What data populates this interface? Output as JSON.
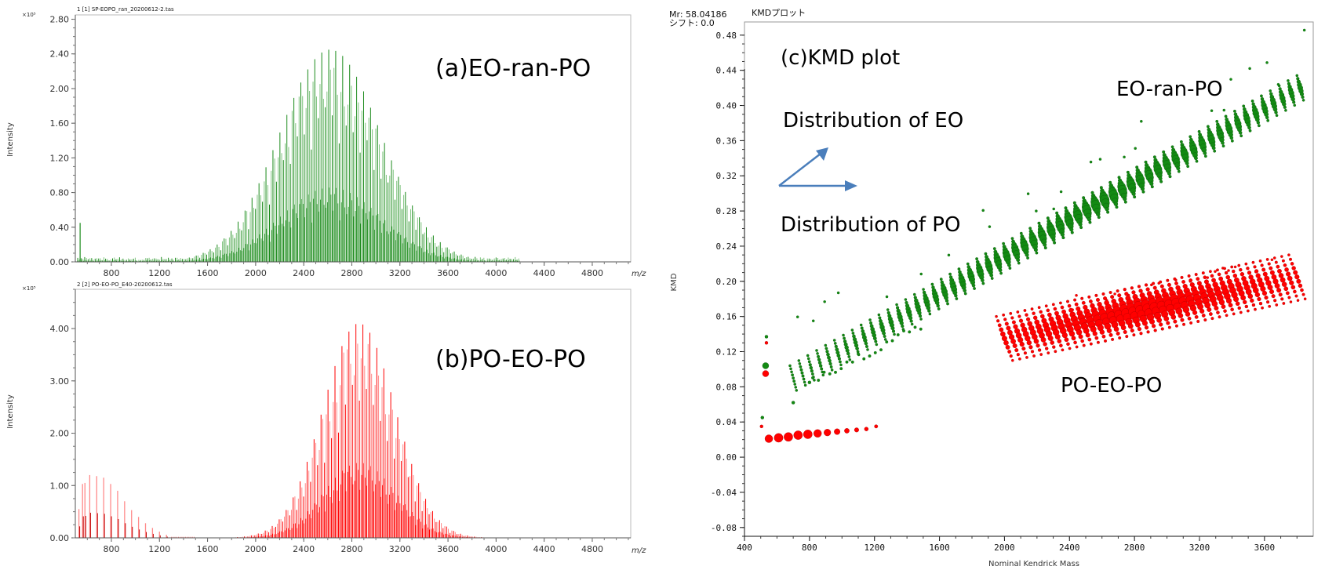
{
  "chart_data": [
    {
      "id": "a",
      "type": "bar",
      "file_label": "1 [1] SP-EOPO_ran_20200612-2.tas",
      "annotation": "(a)EO-ran-PO",
      "scale_label": "×10⁵",
      "ylabel": "Intensity",
      "xlabel": "m/z",
      "xlim": [
        500,
        5120
      ],
      "ylim": [
        0,
        2.85
      ],
      "yticks": [
        "0.00",
        "0.40",
        "0.80",
        "1.20",
        "1.60",
        "2.00",
        "2.40",
        "2.80"
      ],
      "xticks": [
        "800",
        "1200",
        "1600",
        "2000",
        "2400",
        "2800",
        "3200",
        "3600",
        "4000",
        "4400",
        "4800"
      ],
      "color": "#1a8a1a",
      "color_light": "#7fc47f",
      "envelope": {
        "center": 2620,
        "sigma": 420,
        "peak": 2.45,
        "spacing": 14.5,
        "start": 520,
        "end": 4200
      },
      "low_mass_peak": {
        "x": 540,
        "y": 0.45
      },
      "baseline": 0.04
    },
    {
      "id": "b",
      "type": "bar",
      "file_label": "2 [2] PO-EO-PO_E40-20200612.tas",
      "annotation": "(b)PO-EO-PO",
      "scale_label": "×10⁵",
      "ylabel": "Intensity",
      "xlabel": "m/z",
      "xlim": [
        500,
        5120
      ],
      "ylim": [
        0,
        4.75
      ],
      "yticks": [
        "0.00",
        "1.00",
        "2.00",
        "3.00",
        "4.00"
      ],
      "xticks": [
        "800",
        "1200",
        "1600",
        "2000",
        "2400",
        "2800",
        "3200",
        "3600",
        "4000",
        "4400",
        "4800"
      ],
      "color": "#ff0000",
      "color_light": "#ff8a8a",
      "envelope": {
        "center": 2860,
        "sigma": 300,
        "peak": 4.1,
        "spacing": 14.5,
        "start": 1500,
        "end": 4200
      },
      "low_mass_series": [
        {
          "x": 530,
          "y": 0.55
        },
        {
          "x": 560,
          "y": 1.03
        },
        {
          "x": 580,
          "y": 1.05
        },
        {
          "x": 620,
          "y": 1.2
        },
        {
          "x": 678,
          "y": 1.18
        },
        {
          "x": 736,
          "y": 1.15
        },
        {
          "x": 794,
          "y": 1.03
        },
        {
          "x": 852,
          "y": 0.9
        },
        {
          "x": 910,
          "y": 0.7
        },
        {
          "x": 968,
          "y": 0.53
        },
        {
          "x": 1026,
          "y": 0.4
        },
        {
          "x": 1084,
          "y": 0.28
        },
        {
          "x": 1142,
          "y": 0.19
        },
        {
          "x": 1200,
          "y": 0.12
        },
        {
          "x": 1258,
          "y": 0.06
        }
      ]
    },
    {
      "id": "c",
      "type": "scatter",
      "header_mr": "Mr: 58.04186",
      "header_shift": "シフト: 0.0",
      "title": "KMDプロット",
      "annotation": "(c)KMD plot",
      "xlabel": "Nominal Kendrick Mass",
      "ylabel": "KMD",
      "xlim": [
        400,
        3900
      ],
      "ylim": [
        -0.09,
        0.495
      ],
      "xticks": [
        "400",
        "800",
        "1200",
        "1600",
        "2000",
        "2400",
        "2800",
        "3200",
        "3600"
      ],
      "yticks": [
        "-0.08",
        "-0.04",
        "0.00",
        "0.04",
        "0.08",
        "0.12",
        "0.16",
        "0.20",
        "0.24",
        "0.28",
        "0.32",
        "0.36",
        "0.40",
        "0.44",
        "0.48"
      ],
      "legend_arrows": {
        "eo_label": "Distribution of EO",
        "po_label": "Distribution of PO",
        "color": "#4a7ebb"
      },
      "series": [
        {
          "name": "EO-ran-PO",
          "color": "#138a13",
          "edge": "#0a5a0a",
          "band": {
            "x_start": 700,
            "x_end": 3820,
            "y_start": 0.09,
            "y_end": 0.42,
            "peak_x": 2600
          },
          "isolated_points": [
            [
              510,
              0.045
            ],
            [
              530,
              0.104
            ],
            [
              535,
              0.137
            ],
            [
              700,
              0.062
            ],
            [
              800,
              0.085
            ]
          ]
        },
        {
          "name": "PO-EO-PO",
          "color": "#ff0000",
          "edge": "#b00000",
          "band": {
            "x_start": 2000,
            "x_end": 3800,
            "y_start": 0.135,
            "y_end": 0.205,
            "peak_x": 2850
          },
          "isolated_points": [
            [
              505,
              0.035
            ],
            [
              530,
              0.095
            ],
            [
              535,
              0.13
            ]
          ],
          "low_series": [
            [
              550,
              0.021,
              8
            ],
            [
              610,
              0.022,
              9
            ],
            [
              670,
              0.023,
              9
            ],
            [
              730,
              0.025,
              9
            ],
            [
              790,
              0.026,
              9
            ],
            [
              850,
              0.027,
              8
            ],
            [
              910,
              0.028,
              7
            ],
            [
              970,
              0.029,
              6
            ],
            [
              1030,
              0.03,
              5
            ],
            [
              1090,
              0.031,
              4.5
            ],
            [
              1150,
              0.032,
              4
            ],
            [
              1210,
              0.035,
              3.5
            ]
          ]
        }
      ],
      "annotations": [
        "EO-ran-PO",
        "PO-EO-PO"
      ]
    }
  ]
}
